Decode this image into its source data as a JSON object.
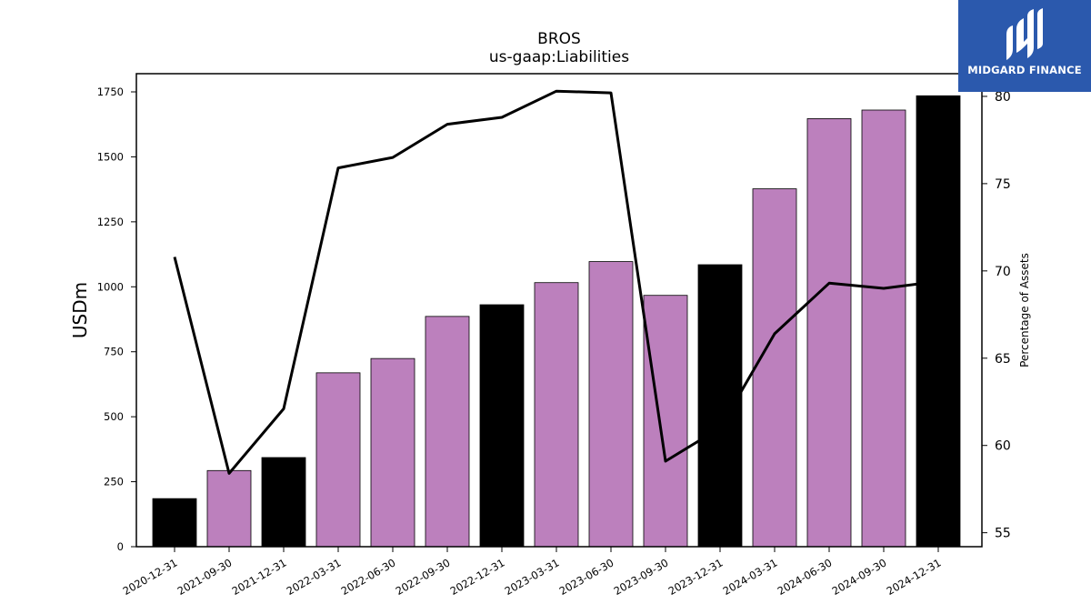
{
  "branding": {
    "logo_text": "MIDGARD FINANCE",
    "background_color": "#2b59ad"
  },
  "chart_data": {
    "type": "bar",
    "title": "BROS",
    "subtitle": "us-gaap:Liabilities",
    "ylabel": "USDm",
    "y2label": "Percentage of Assets",
    "ylim": [
      0,
      1820
    ],
    "y2lim": [
      54.2,
      81.3
    ],
    "yticks": [
      0,
      250,
      500,
      750,
      1000,
      1250,
      1500,
      1750
    ],
    "y2ticks": [
      55,
      60,
      65,
      70,
      75,
      80
    ],
    "categories": [
      "2020-12-31",
      "2021-09-30",
      "2021-12-31",
      "2022-03-31",
      "2022-06-30",
      "2022-09-30",
      "2022-12-31",
      "2023-03-31",
      "2023-06-30",
      "2023-09-30",
      "2023-12-31",
      "2024-03-31",
      "2024-06-30",
      "2024-09-30",
      "2024-12-31"
    ],
    "series": [
      {
        "kind": "bar",
        "axis": "left",
        "values": [
          185,
          293,
          343,
          669,
          724,
          886,
          931,
          1016,
          1097,
          967,
          1085,
          1377,
          1647,
          1680,
          1735
        ],
        "colors": [
          "#000000",
          "#bc80bd",
          "#000000",
          "#bc80bd",
          "#bc80bd",
          "#bc80bd",
          "#000000",
          "#bc80bd",
          "#bc80bd",
          "#bc80bd",
          "#000000",
          "#bc80bd",
          "#bc80bd",
          "#bc80bd",
          "#000000"
        ]
      },
      {
        "kind": "line",
        "axis": "right",
        "color": "#000000",
        "values": [
          70.8,
          58.4,
          62.1,
          75.9,
          76.5,
          78.4,
          78.8,
          80.3,
          80.2,
          59.1,
          61.0,
          66.4,
          69.3,
          69.0,
          69.4
        ]
      }
    ],
    "grid": false,
    "legend": "none"
  }
}
